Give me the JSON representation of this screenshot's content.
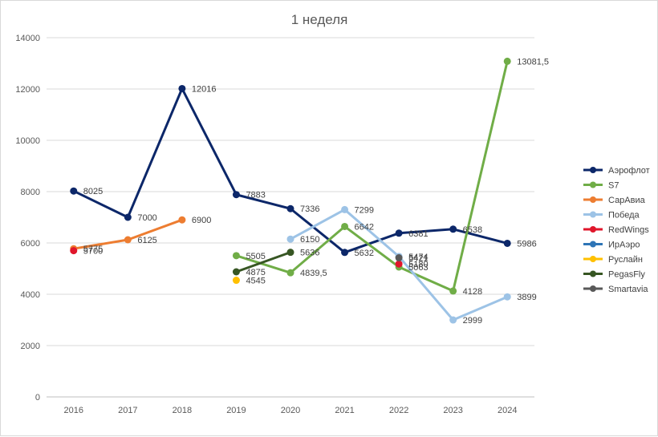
{
  "chart_data": {
    "type": "line",
    "title": "1 неделя",
    "x": [
      "2016",
      "2017",
      "2018",
      "2019",
      "2020",
      "2021",
      "2022",
      "2023",
      "2024"
    ],
    "ylim": [
      0,
      14000
    ],
    "yticks": [
      "0",
      "2000",
      "4000",
      "6000",
      "8000",
      "10000",
      "12000",
      "14000"
    ],
    "grid": true,
    "legend_position": "right",
    "series": [
      {
        "name": "Аэрофлот",
        "color": "#0c2769",
        "values": [
          8025,
          7000,
          12016,
          7883,
          7336,
          5632,
          6381,
          6538,
          5986
        ],
        "labels": [
          "8025",
          "7000",
          "12016",
          "7883",
          "7336",
          "5632",
          "6381",
          "6538",
          "5986"
        ]
      },
      {
        "name": "S7",
        "color": "#70ad47",
        "values": [
          null,
          null,
          null,
          5505,
          4839.5,
          6642,
          5063,
          4128,
          13081.5
        ],
        "labels": [
          null,
          null,
          null,
          "5505",
          "4839,5",
          "6642",
          "5063",
          "4128",
          "13081,5"
        ]
      },
      {
        "name": "СарАвиа",
        "color": "#ed7d31",
        "values": [
          5775,
          6125,
          6900,
          null,
          null,
          null,
          null,
          null,
          null
        ],
        "labels": [
          "5775",
          "6125",
          "6900",
          null,
          null,
          null,
          null,
          null,
          null
        ]
      },
      {
        "name": "Победа",
        "color": "#9dc3e6",
        "values": [
          null,
          null,
          null,
          null,
          6150,
          7299,
          5474,
          2999,
          3899
        ],
        "labels": [
          null,
          null,
          null,
          null,
          "6150",
          "7299",
          "5474",
          "2999",
          "3899"
        ]
      },
      {
        "name": "RedWings",
        "color": "#e0162b",
        "values": [
          5700,
          null,
          null,
          null,
          null,
          null,
          5180,
          null,
          null
        ],
        "labels": [
          "5700",
          null,
          null,
          null,
          null,
          null,
          "5180",
          null,
          null
        ]
      },
      {
        "name": "ИрАэро",
        "color": "#2e75b6",
        "values": [
          null,
          null,
          null,
          null,
          null,
          null,
          null,
          null,
          null
        ],
        "labels": [
          null,
          null,
          null,
          null,
          null,
          null,
          null,
          null,
          null
        ]
      },
      {
        "name": "Руслайн",
        "color": "#ffc000",
        "values": [
          null,
          null,
          null,
          4545,
          null,
          null,
          null,
          null,
          null
        ],
        "labels": [
          null,
          null,
          null,
          "4545",
          null,
          null,
          null,
          null,
          null
        ]
      },
      {
        "name": "PegasFly",
        "color": "#375623",
        "values": [
          null,
          null,
          null,
          4875,
          5636,
          null,
          null,
          null,
          null
        ],
        "labels": [
          null,
          null,
          null,
          "4875",
          "5636",
          null,
          null,
          null,
          null
        ]
      },
      {
        "name": "Smartavia",
        "color": "#595959",
        "values": [
          null,
          null,
          null,
          null,
          null,
          null,
          5421,
          null,
          null
        ],
        "labels": [
          null,
          null,
          null,
          null,
          null,
          null,
          "5421",
          null,
          null
        ]
      }
    ]
  }
}
